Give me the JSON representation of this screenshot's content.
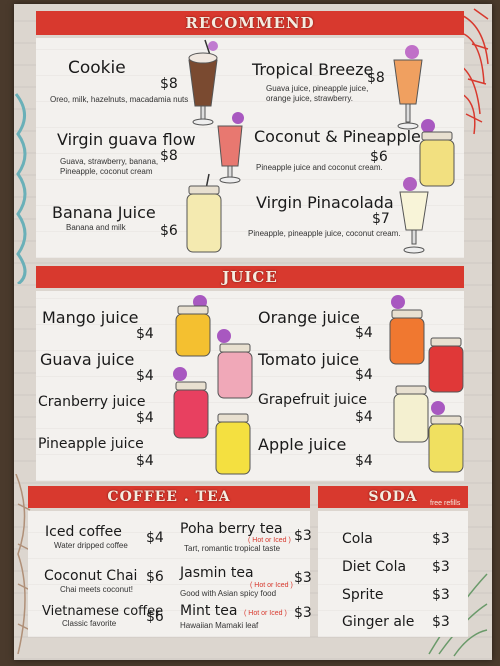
{
  "sections": {
    "recommend": "RECOMMEND",
    "juice": "JUICE",
    "coffee_tea": "COFFEE . TEA",
    "soda": "SODA",
    "soda_note": "free refills"
  },
  "recommend": [
    {
      "name": "Cookie",
      "price": "$8",
      "desc": "Oreo, milk, hazelnuts, macadamia nuts"
    },
    {
      "name": "Virgin guava flow",
      "price": "$8",
      "desc": "Guava, strawberry, banana,",
      "desc2": "Pineapple, coconut cream"
    },
    {
      "name": "Banana Juice",
      "price": "$6",
      "desc": "Banana and milk"
    },
    {
      "name": "Tropical Breeze",
      "price": "$8",
      "desc": "Guava juice, pineapple juice,",
      "desc2": "orange juice, strawberry."
    },
    {
      "name": "Coconut & Pineapple",
      "price": "$6",
      "desc": "Pineapple juice and coconut cream."
    },
    {
      "name": "Virgin Pinacolada",
      "price": "$7",
      "desc": "Pineapple, pineapple juice, coconut cream."
    }
  ],
  "juice": [
    {
      "name": "Mango juice",
      "price": "$4"
    },
    {
      "name": "Guava juice",
      "price": "$4"
    },
    {
      "name": "Cranberry juice",
      "price": "$4"
    },
    {
      "name": "Pineapple juice",
      "price": "$4"
    },
    {
      "name": "Orange juice",
      "price": "$4"
    },
    {
      "name": "Tomato juice",
      "price": "$4"
    },
    {
      "name": "Grapefruit juice",
      "price": "$4"
    },
    {
      "name": "Apple juice",
      "price": "$4"
    }
  ],
  "coffee": [
    {
      "name": "Iced coffee",
      "price": "$4",
      "desc": "Water dripped coffee"
    },
    {
      "name": "Coconut Chai",
      "price": "$6",
      "desc": "Chai meets coconut!"
    },
    {
      "name": "Vietnamese coffee",
      "price": "$6",
      "desc": "Classic favorite"
    }
  ],
  "tea": [
    {
      "name": "Poha berry tea",
      "price": "$3",
      "hot": "( Hot or Iced )",
      "desc": "Tart, romantic tropical taste"
    },
    {
      "name": "Jasmin tea",
      "price": "$3",
      "hot": "( Hot or Iced )",
      "desc": "Good with Asian spicy food"
    },
    {
      "name": "Mint tea",
      "price": "$3",
      "hot": "( Hot or Iced )",
      "desc": "Hawaiian Mamaki leaf"
    }
  ],
  "soda": [
    {
      "name": "Cola",
      "price": "$3"
    },
    {
      "name": "Diet Cola",
      "price": "$3"
    },
    {
      "name": "Sprite",
      "price": "$3"
    },
    {
      "name": "Ginger ale",
      "price": "$3"
    }
  ],
  "colors": {
    "banner": "#d8392e",
    "panel": "#f3f1ee",
    "paper": "#dcd6cf",
    "background": "#4a3a2c"
  },
  "icons": [
    "milkshake-icon",
    "cocktail-glass-icon",
    "mason-jar-icon",
    "hibiscus-flower-icon"
  ]
}
